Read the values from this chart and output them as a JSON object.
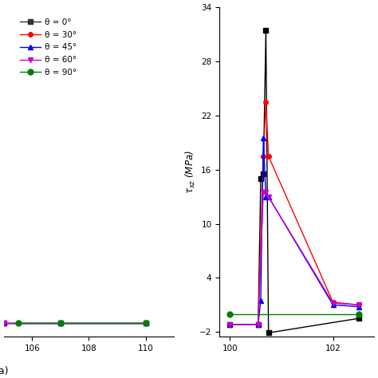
{
  "left_plot": {
    "xlim": [
      105.0,
      111.0
    ],
    "ylim": [
      -2.5,
      34
    ],
    "xticks": [
      106,
      108,
      110
    ],
    "series": [
      {
        "label": "θ = 0°",
        "color": "#333333",
        "marker": "s",
        "markersize": 4,
        "x": [
          105.0,
          107.0,
          110.0
        ],
        "y": [
          -1.0,
          -1.0,
          -1.0
        ]
      },
      {
        "label": "θ = 30°",
        "color": "#ff0000",
        "marker": "o",
        "markersize": 4,
        "x": [
          105.0,
          107.0,
          110.0
        ],
        "y": [
          -1.0,
          -1.0,
          -1.0
        ]
      },
      {
        "label": "θ = 45°",
        "color": "#0000ff",
        "marker": "^",
        "markersize": 4,
        "x": [
          105.0,
          107.0,
          110.0
        ],
        "y": [
          -1.0,
          -1.0,
          -1.0
        ]
      },
      {
        "label": "θ = 60°",
        "color": "#cc00cc",
        "marker": "v",
        "markersize": 4,
        "x": [
          105.0,
          107.0,
          110.0
        ],
        "y": [
          -1.0,
          -1.0,
          -1.0
        ]
      },
      {
        "label": "θ = 90°",
        "color": "#008000",
        "marker": "o",
        "markersize": 5,
        "x": [
          105.5,
          107.0,
          110.0
        ],
        "y": [
          -1.0,
          -1.0,
          -1.0
        ]
      }
    ]
  },
  "right_plot": {
    "ylabel": "$\\tau_{xz}$ (MPa)",
    "xlim": [
      99.8,
      102.8
    ],
    "ylim": [
      -2.5,
      34
    ],
    "xticks": [
      100,
      102
    ],
    "yticks": [
      -2,
      4,
      10,
      16,
      22,
      28,
      34
    ],
    "series": [
      {
        "label": "θ = 0°",
        "color": "#000000",
        "marker": "s",
        "markersize": 4,
        "x": [
          100.0,
          100.55,
          100.6,
          100.65,
          100.7,
          100.75,
          102.5
        ],
        "y": [
          -1.2,
          -1.2,
          15.0,
          15.5,
          31.5,
          -2.1,
          -0.5
        ]
      },
      {
        "label": "θ = 30°",
        "color": "#ff0000",
        "marker": "o",
        "markersize": 4,
        "x": [
          100.0,
          100.55,
          100.65,
          100.7,
          100.75,
          102.0,
          102.5
        ],
        "y": [
          -1.2,
          -1.2,
          17.5,
          23.5,
          17.5,
          1.3,
          1.0
        ]
      },
      {
        "label": "θ = 45°",
        "color": "#0000ff",
        "marker": "^",
        "markersize": 4,
        "x": [
          100.0,
          100.55,
          100.6,
          100.65,
          100.7,
          100.75,
          102.0,
          102.5
        ],
        "y": [
          -1.2,
          -1.2,
          1.5,
          19.5,
          13.0,
          13.0,
          1.0,
          0.8
        ]
      },
      {
        "label": "θ = 60°",
        "color": "#cc00cc",
        "marker": "v",
        "markersize": 4,
        "x": [
          100.0,
          100.55,
          100.65,
          100.7,
          100.75,
          102.0,
          102.5
        ],
        "y": [
          -1.2,
          -1.2,
          13.5,
          13.5,
          13.0,
          1.2,
          1.0
        ]
      },
      {
        "label": "θ = 90°",
        "color": "#008000",
        "marker": "o",
        "markersize": 5,
        "x": [
          100.0,
          102.5
        ],
        "y": [
          0.0,
          0.0
        ]
      }
    ]
  },
  "legend_labels": [
    "θ = 0°",
    "θ = 30°",
    "θ = 45°",
    "θ = 60°",
    "θ = 90°"
  ],
  "label_a": "(a)"
}
